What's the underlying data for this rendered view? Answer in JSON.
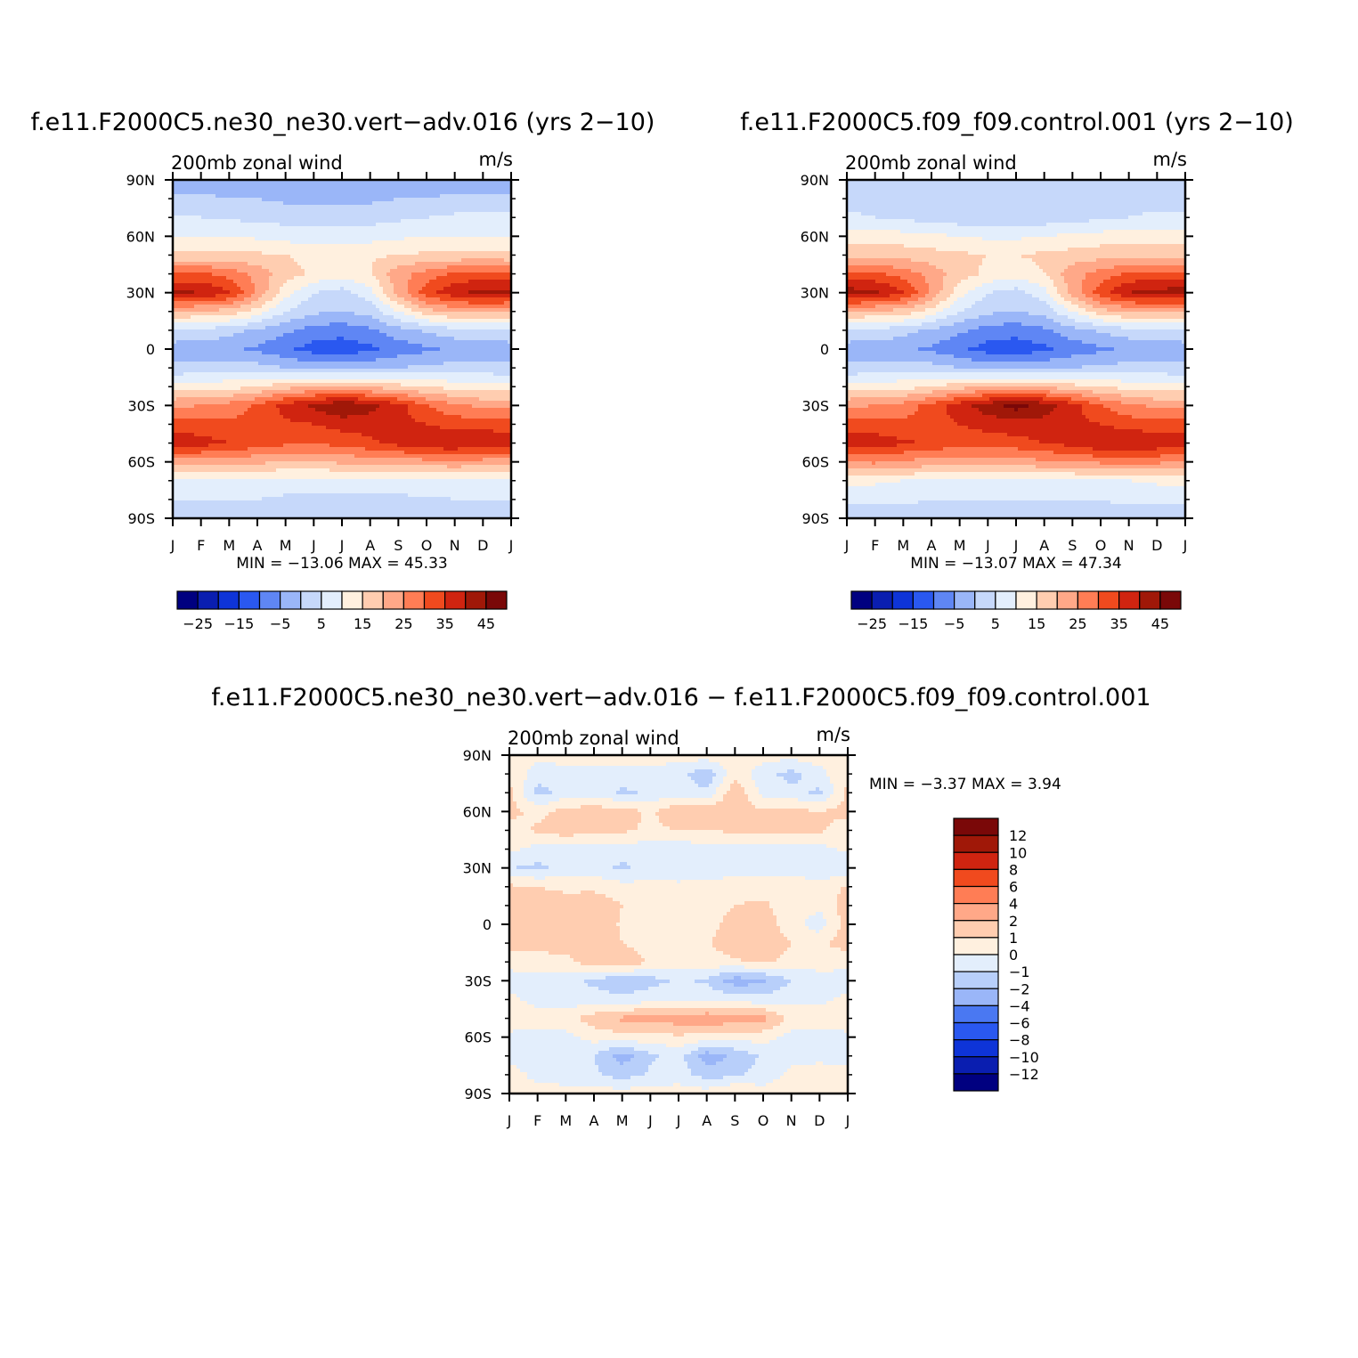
{
  "chart_data": [
    {
      "type": "heatmap",
      "title": "f.e11.F2000C5.ne30_ne30.vert−adv.016 (yrs 2−10)",
      "left_label": "200mb zonal wind",
      "right_label": "m/s",
      "x_tick_labels": [
        "J",
        "F",
        "M",
        "A",
        "M",
        "J",
        "J",
        "A",
        "S",
        "O",
        "N",
        "D",
        "J"
      ],
      "y_tick_labels": [
        "90N",
        "60N",
        "30N",
        "0",
        "30S",
        "60S",
        "90S"
      ],
      "ylim": [
        -90,
        90
      ],
      "min_max_text": "MIN = −13.06 MAX = 45.33",
      "min": -13.06,
      "max": 45.33,
      "colorbar": {
        "orientation": "horizontal",
        "colors": [
          "#000080",
          "#0a1eb0",
          "#0e34d8",
          "#2a58f0",
          "#5f86f4",
          "#9ab6f8",
          "#c6d8fa",
          "#e3eefc",
          "#fff0df",
          "#ffcdb0",
          "#ffa888",
          "#ff7d55",
          "#f04a1e",
          "#d02410",
          "#a01808",
          "#7a0808"
        ],
        "labels": [
          "−25",
          "−15",
          "−5",
          "5",
          "15",
          "25",
          "35",
          "45"
        ]
      },
      "field": {
        "lats": [
          -90,
          -80,
          -70,
          -60,
          -50,
          -40,
          -30,
          -20,
          -10,
          0,
          10,
          20,
          30,
          40,
          50,
          60,
          70,
          80,
          90
        ],
        "rows": [
          [
            3,
            3,
            3,
            3,
            3,
            3,
            3,
            3,
            3,
            3,
            3,
            3,
            3
          ],
          [
            5,
            5,
            5,
            5,
            4,
            4,
            4,
            4,
            4,
            4,
            5,
            5,
            5
          ],
          [
            9,
            9,
            9,
            9,
            8,
            8,
            8,
            8,
            8,
            9,
            9,
            9,
            9
          ],
          [
            22,
            23,
            22,
            21,
            20,
            20,
            21,
            22,
            22,
            23,
            24,
            23,
            22
          ],
          [
            38,
            37,
            35,
            33,
            31,
            30,
            32,
            34,
            37,
            40,
            40,
            39,
            38
          ],
          [
            33,
            32,
            31,
            32,
            34,
            35,
            37,
            37,
            36,
            35,
            33,
            33,
            33
          ],
          [
            24,
            25,
            27,
            31,
            37,
            41,
            45,
            42,
            37,
            30,
            26,
            24,
            24
          ],
          [
            12,
            13,
            13,
            15,
            18,
            20,
            21,
            19,
            17,
            15,
            13,
            12,
            12
          ],
          [
            1,
            2,
            3,
            2,
            0,
            -2,
            -2,
            -1,
            0,
            1,
            2,
            2,
            1
          ],
          [
            -3,
            -3,
            -4,
            -6,
            -9,
            -12,
            -13,
            -11,
            -8,
            -6,
            -4,
            -3,
            -3
          ],
          [
            5,
            4,
            2,
            -1,
            -4,
            -7,
            -8,
            -6,
            -2,
            1,
            3,
            4,
            5
          ],
          [
            20,
            19,
            18,
            13,
            5,
            1,
            0,
            2,
            10,
            18,
            21,
            21,
            20
          ],
          [
            41,
            40,
            36,
            24,
            12,
            5,
            3,
            8,
            22,
            33,
            39,
            42,
            41
          ],
          [
            31,
            31,
            28,
            23,
            17,
            14,
            12,
            15,
            23,
            27,
            31,
            32,
            31
          ],
          [
            16,
            16,
            17,
            16,
            15,
            14,
            13,
            14,
            15,
            16,
            16,
            16,
            16
          ],
          [
            10,
            10,
            10,
            9,
            8,
            7,
            7,
            8,
            9,
            10,
            10,
            10,
            10
          ],
          [
            6,
            5,
            4,
            4,
            3,
            3,
            3,
            3,
            4,
            5,
            6,
            6,
            6
          ],
          [
            1,
            1,
            0,
            0,
            -1,
            -1,
            -1,
            -1,
            0,
            0,
            1,
            1,
            1
          ],
          [
            -2,
            -2,
            -3,
            -3,
            -3,
            -3,
            -3,
            -3,
            -3,
            -3,
            -2,
            -2,
            -2
          ]
        ]
      }
    },
    {
      "type": "heatmap",
      "title": "f.e11.F2000C5.f09_f09.control.001 (yrs 2−10)",
      "left_label": "200mb zonal wind",
      "right_label": "m/s",
      "x_tick_labels": [
        "J",
        "F",
        "M",
        "A",
        "M",
        "J",
        "J",
        "A",
        "S",
        "O",
        "N",
        "D",
        "J"
      ],
      "y_tick_labels": [
        "90N",
        "60N",
        "30N",
        "0",
        "30S",
        "60S",
        "90S"
      ],
      "ylim": [
        -90,
        90
      ],
      "min_max_text": "MIN = −13.07 MAX = 47.34",
      "min": -13.07,
      "max": 47.34,
      "colorbar": {
        "orientation": "horizontal",
        "colors": [
          "#000080",
          "#0a1eb0",
          "#0e34d8",
          "#2a58f0",
          "#5f86f4",
          "#9ab6f8",
          "#c6d8fa",
          "#e3eefc",
          "#fff0df",
          "#ffcdb0",
          "#ffa888",
          "#ff7d55",
          "#f04a1e",
          "#d02410",
          "#a01808",
          "#7a0808"
        ],
        "labels": [
          "−25",
          "−15",
          "−5",
          "5",
          "15",
          "25",
          "35",
          "45"
        ]
      },
      "field": {
        "lats": [
          -90,
          -80,
          -70,
          -60,
          -50,
          -40,
          -30,
          -20,
          -10,
          0,
          10,
          20,
          30,
          40,
          50,
          60,
          70,
          80,
          90
        ],
        "rows": [
          [
            3,
            3,
            3,
            2,
            1,
            1,
            1,
            2,
            3,
            3,
            3,
            3,
            3
          ],
          [
            6,
            6,
            6,
            5,
            5,
            5,
            5,
            5,
            5,
            5,
            6,
            6,
            6
          ],
          [
            11,
            11,
            10,
            10,
            9,
            9,
            9,
            9,
            9,
            10,
            10,
            11,
            11
          ],
          [
            25,
            26,
            24,
            23,
            22,
            22,
            23,
            24,
            25,
            26,
            27,
            26,
            25
          ],
          [
            38,
            38,
            36,
            34,
            32,
            32,
            33,
            35,
            37,
            40,
            40,
            39,
            38
          ],
          [
            32,
            32,
            31,
            33,
            35,
            37,
            38,
            38,
            36,
            35,
            33,
            32,
            32
          ],
          [
            24,
            25,
            27,
            32,
            38,
            43,
            47,
            43,
            37,
            30,
            26,
            24,
            24
          ],
          [
            12,
            13,
            13,
            15,
            18,
            20,
            21,
            19,
            17,
            15,
            13,
            12,
            12
          ],
          [
            1,
            2,
            3,
            2,
            0,
            -2,
            -2,
            -1,
            0,
            1,
            2,
            2,
            1
          ],
          [
            -3,
            -3,
            -4,
            -6,
            -9,
            -12,
            -13,
            -11,
            -8,
            -6,
            -4,
            -3,
            -3
          ],
          [
            5,
            4,
            2,
            -1,
            -4,
            -7,
            -8,
            -6,
            -2,
            1,
            3,
            4,
            5
          ],
          [
            20,
            19,
            18,
            13,
            5,
            1,
            0,
            2,
            10,
            18,
            21,
            21,
            20
          ],
          [
            43,
            41,
            36,
            24,
            12,
            5,
            3,
            8,
            22,
            33,
            40,
            42,
            43
          ],
          [
            31,
            31,
            28,
            23,
            17,
            14,
            12,
            15,
            23,
            27,
            31,
            32,
            31
          ],
          [
            18,
            18,
            18,
            17,
            16,
            15,
            15,
            16,
            17,
            18,
            18,
            18,
            18
          ],
          [
            12,
            12,
            12,
            11,
            10,
            9,
            9,
            10,
            11,
            12,
            12,
            12,
            12
          ],
          [
            6,
            5,
            4,
            3,
            2,
            1,
            1,
            2,
            3,
            4,
            5,
            6,
            6
          ],
          [
            3,
            3,
            2,
            2,
            1,
            1,
            1,
            1,
            2,
            2,
            3,
            3,
            3
          ],
          [
            1,
            1,
            1,
            1,
            1,
            1,
            1,
            1,
            1,
            1,
            1,
            1,
            1
          ]
        ]
      }
    },
    {
      "type": "heatmap",
      "title": "f.e11.F2000C5.ne30_ne30.vert−adv.016 − f.e11.F2000C5.f09_f09.control.001",
      "left_label": "200mb zonal wind",
      "right_label": "m/s",
      "x_tick_labels": [
        "J",
        "F",
        "M",
        "A",
        "M",
        "J",
        "J",
        "A",
        "S",
        "O",
        "N",
        "D",
        "J"
      ],
      "y_tick_labels": [
        "90N",
        "60N",
        "30N",
        "0",
        "30S",
        "60S",
        "90S"
      ],
      "ylim": [
        -90,
        90
      ],
      "min_max_text": "MIN = −3.37 MAX = 3.94",
      "min": -3.37,
      "max": 3.94,
      "colorbar": {
        "orientation": "vertical",
        "colors": [
          "#000080",
          "#0a1eb0",
          "#0e34d8",
          "#2a58f0",
          "#4a78f2",
          "#9ab6f8",
          "#b8cffa",
          "#e3eefc",
          "#fff0df",
          "#ffcdb0",
          "#ffa888",
          "#ff7d55",
          "#f04a1e",
          "#d02410",
          "#a01808",
          "#7a0808"
        ],
        "labels": [
          "12",
          "10",
          "8",
          "6",
          "4",
          "2",
          "1",
          "0",
          "−1",
          "−2",
          "−4",
          "−6",
          "−8",
          "−10",
          "−12"
        ]
      },
      "field": {
        "lats": [
          -90,
          -80,
          -70,
          -60,
          -50,
          -40,
          -30,
          -20,
          -10,
          0,
          10,
          20,
          30,
          40,
          50,
          60,
          70,
          80,
          90
        ],
        "rows": [
          [
            0.5,
            0.5,
            0.5,
            0.5,
            0.5,
            0.5,
            0.5,
            0.5,
            1.2,
            0.5,
            0.5,
            0.5,
            0.5
          ],
          [
            0.6,
            -0.4,
            -0.6,
            -0.8,
            -1.5,
            -0.8,
            -0.5,
            -1.5,
            -1.2,
            -0.6,
            0.3,
            0.5,
            0.6
          ],
          [
            -0.5,
            -0.6,
            -0.5,
            -1.0,
            -2.5,
            -1.2,
            -0.6,
            -2.6,
            -1.8,
            -0.8,
            -0.4,
            -0.3,
            -0.5
          ],
          [
            -0.3,
            -0.4,
            -0.3,
            0.4,
            0.6,
            0.6,
            0.8,
            0.6,
            0.4,
            0.4,
            -0.3,
            -0.3,
            -0.3
          ],
          [
            0.7,
            0.4,
            0.6,
            1.6,
            2.2,
            2.3,
            2.6,
            2.8,
            2.6,
            2.4,
            0.6,
            0.4,
            0.7
          ],
          [
            0.2,
            -0.3,
            -0.5,
            -0.6,
            -0.6,
            -0.4,
            -0.2,
            -0.2,
            -0.4,
            -0.6,
            -0.3,
            -0.2,
            0.2
          ],
          [
            -0.4,
            -0.3,
            -0.7,
            -1.2,
            -2.0,
            -1.4,
            -0.8,
            -1.2,
            -2.6,
            -2.2,
            -1.0,
            -0.4,
            -0.4
          ],
          [
            0.3,
            0.5,
            0.6,
            1.8,
            2.0,
            0.8,
            0.4,
            0.6,
            0.8,
            1.2,
            0.6,
            0.4,
            0.3
          ],
          [
            1.5,
            1.4,
            1.6,
            1.5,
            1.0,
            0.4,
            0.4,
            0.8,
            1.8,
            1.7,
            1.0,
            0.8,
            1.5
          ],
          [
            1.6,
            1.8,
            1.6,
            1.5,
            0.9,
            0.5,
            0.2,
            0.6,
            1.4,
            1.5,
            0.5,
            -0.6,
            1.6
          ],
          [
            1.5,
            1.6,
            1.4,
            1.8,
            1.0,
            0.4,
            0.2,
            0.5,
            1.0,
            1.2,
            0.4,
            0.3,
            1.5
          ],
          [
            1.2,
            1.0,
            0.8,
            0.7,
            0.4,
            0.3,
            0.3,
            0.4,
            0.5,
            0.6,
            0.6,
            0.3,
            1.2
          ],
          [
            -1.0,
            -1.2,
            -0.8,
            -0.6,
            -1.2,
            -0.6,
            -0.8,
            -0.6,
            -0.5,
            -0.6,
            -0.4,
            -0.6,
            -1.0
          ],
          [
            0.3,
            -0.4,
            -0.4,
            -0.6,
            -0.6,
            -0.5,
            -0.6,
            -0.5,
            -0.4,
            -0.4,
            -0.5,
            -0.4,
            0.3
          ],
          [
            0.4,
            1.2,
            1.6,
            1.3,
            1.2,
            0.8,
            1.0,
            1.0,
            1.2,
            1.4,
            1.5,
            1.2,
            0.4
          ],
          [
            1.4,
            0.6,
            1.4,
            1.6,
            1.5,
            0.8,
            1.8,
            2.0,
            1.5,
            1.2,
            1.4,
            1.0,
            1.4
          ],
          [
            1.2,
            -1.4,
            -0.6,
            -0.4,
            -1.2,
            -0.8,
            -0.4,
            -0.8,
            1.8,
            -0.4,
            -0.6,
            -1.2,
            1.2
          ],
          [
            1.0,
            -0.6,
            -0.6,
            -0.6,
            -0.4,
            -0.6,
            -0.6,
            -1.8,
            0.8,
            -0.6,
            -1.4,
            -0.4,
            1.0
          ],
          [
            0.6,
            0.4,
            0.6,
            0.6,
            0.4,
            0.6,
            0.5,
            0.6,
            0.6,
            0.5,
            0.4,
            0.6,
            0.6
          ]
        ]
      }
    }
  ]
}
